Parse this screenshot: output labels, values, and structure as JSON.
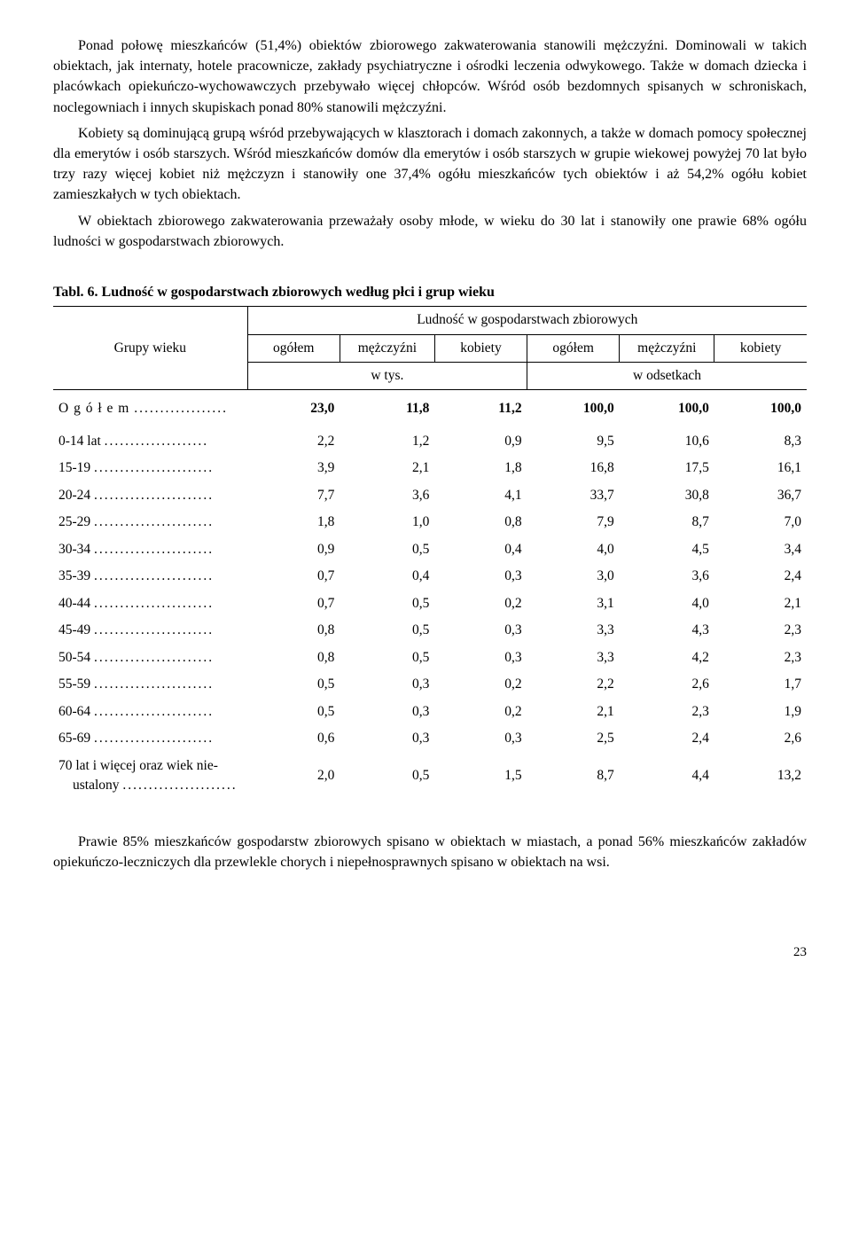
{
  "paragraphs": {
    "p1": "Ponad połowę mieszkańców (51,4%) obiektów zbiorowego zakwaterowania stanowili mężczyźni. Dominowali w takich obiektach, jak internaty, hotele pracownicze, zakłady psychiatryczne i ośrodki leczenia odwykowego. Także w domach dziecka i placówkach opiekuńczo-wychowawczych przebywało więcej chłopców. Wśród osób bezdomnych spisanych w schroniskach, noclegowniach i innych skupiskach ponad 80% stanowili mężczyźni.",
    "p2": "Kobiety są dominującą grupą wśród przebywających w klasztorach i domach zakonnych, a także w domach pomocy społecznej dla emerytów i osób starszych. Wśród mieszkańców domów dla emerytów i osób starszych w grupie wiekowej powyżej 70 lat było trzy razy więcej kobiet niż mężczyzn i stanowiły one 37,4% ogółu mieszkańców tych obiektów i aż 54,2% ogółu kobiet zamieszkałych w tych obiektach.",
    "p3": "W obiektach zbiorowego zakwaterowania przeważały osoby młode, w wieku do 30 lat i stanowiły one prawie 68% ogółu ludności w gospodarstwach zbiorowych.",
    "p4": "Prawie 85% mieszkańców gospodarstw zbiorowych spisano w obiektach w miastach, a ponad 56% mieszkańców zakładów opiekuńczo-leczniczych dla przewlekle chorych i niepełnosprawnych spisano w obiektach na wsi."
  },
  "table": {
    "title": "Tabl. 6. Ludność w gospodarstwach zbiorowych według płci i grup wieku",
    "stub_header": "Grupy wieku",
    "spanner": "Ludność w gospodarstwach zbiorowych",
    "col_headers": [
      "ogółem",
      "mężczyźni",
      "kobiety",
      "ogółem",
      "mężczyźni",
      "kobiety"
    ],
    "unit_left": "w tys.",
    "unit_right": "w odsetkach",
    "total_label": "O g ó ł e m",
    "total_values": [
      "23,0",
      "11,8",
      "11,2",
      "100,0",
      "100,0",
      "100,0"
    ],
    "rows": [
      {
        "label": "0-14 lat",
        "v": [
          "2,2",
          "1,2",
          "0,9",
          "9,5",
          "10,6",
          "8,3"
        ]
      },
      {
        "label": "15-19",
        "v": [
          "3,9",
          "2,1",
          "1,8",
          "16,8",
          "17,5",
          "16,1"
        ]
      },
      {
        "label": "20-24",
        "v": [
          "7,7",
          "3,6",
          "4,1",
          "33,7",
          "30,8",
          "36,7"
        ]
      },
      {
        "label": "25-29",
        "v": [
          "1,8",
          "1,0",
          "0,8",
          "7,9",
          "8,7",
          "7,0"
        ]
      },
      {
        "label": "30-34",
        "v": [
          "0,9",
          "0,5",
          "0,4",
          "4,0",
          "4,5",
          "3,4"
        ]
      },
      {
        "label": "35-39",
        "v": [
          "0,7",
          "0,4",
          "0,3",
          "3,0",
          "3,6",
          "2,4"
        ]
      },
      {
        "label": "40-44",
        "v": [
          "0,7",
          "0,5",
          "0,2",
          "3,1",
          "4,0",
          "2,1"
        ]
      },
      {
        "label": "45-49",
        "v": [
          "0,8",
          "0,5",
          "0,3",
          "3,3",
          "4,3",
          "2,3"
        ]
      },
      {
        "label": "50-54",
        "v": [
          "0,8",
          "0,5",
          "0,3",
          "3,3",
          "4,2",
          "2,3"
        ]
      },
      {
        "label": "55-59",
        "v": [
          "0,5",
          "0,3",
          "0,2",
          "2,2",
          "2,6",
          "1,7"
        ]
      },
      {
        "label": "60-64",
        "v": [
          "0,5",
          "0,3",
          "0,2",
          "2,1",
          "2,3",
          "1,9"
        ]
      },
      {
        "label": "65-69",
        "v": [
          "0,6",
          "0,3",
          "0,3",
          "2,5",
          "2,4",
          "2,6"
        ]
      }
    ],
    "lastrow": {
      "label_line1": "70 lat i więcej oraz wiek nie-",
      "label_line2": "ustalony",
      "v": [
        "2,0",
        "0,5",
        "1,5",
        "8,7",
        "4,4",
        "13,2"
      ]
    }
  },
  "page_number": "23",
  "dots": "........................................"
}
